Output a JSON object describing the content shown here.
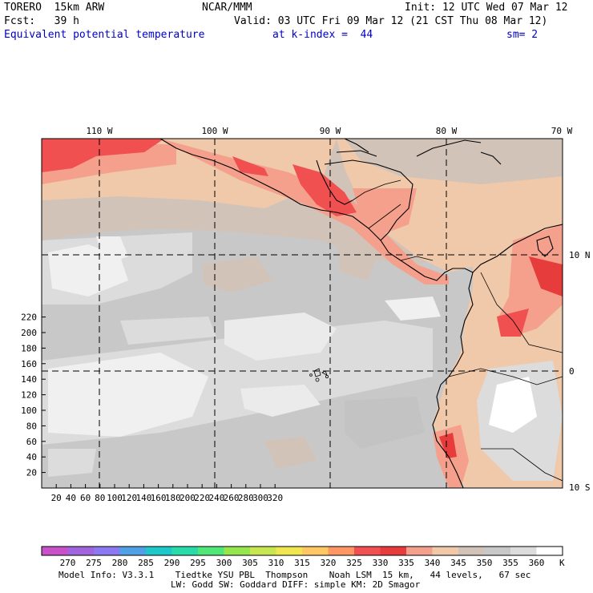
{
  "header": {
    "model": "TORERO  15km ARW",
    "center": "NCAR/MMM",
    "init": "Init: 12 UTC Wed 07 Mar 12",
    "fcst": "Fcst:   39 h",
    "valid": "Valid: 03 UTC Fri 09 Mar 12 (21 CST Thu 08 Mar 12)",
    "field": "Equivalent potential temperature",
    "level": "at k-index =  44",
    "smooth": "sm= 2"
  },
  "map": {
    "lon_labels": [
      "110 W",
      "100 W",
      "90 W",
      "80 W",
      "70 W"
    ],
    "lat_labels": [
      "10 N",
      "0",
      "10 S"
    ],
    "x_ticks": [
      "20",
      "40",
      "60",
      "80",
      "100",
      "120",
      "140",
      "160",
      "180",
      "200",
      "220",
      "240",
      "260",
      "280",
      "300",
      "320"
    ],
    "y_ticks": [
      "20",
      "40",
      "60",
      "80",
      "100",
      "120",
      "140",
      "160",
      "180",
      "200",
      "220"
    ]
  },
  "colorbar": {
    "unit": "K",
    "labels": [
      "270",
      "275",
      "280",
      "285",
      "290",
      "295",
      "300",
      "305",
      "310",
      "315",
      "320",
      "325",
      "330",
      "335",
      "340",
      "345",
      "350",
      "355",
      "360"
    ],
    "colors": [
      "#c850c8",
      "#a064dc",
      "#8c78f0",
      "#50a0e6",
      "#1ec8c8",
      "#28dcaa",
      "#50e678",
      "#96e650",
      "#c8e650",
      "#f0e650",
      "#ffc864",
      "#ff9664",
      "#f05050",
      "#e63c3c",
      "#f4a08c",
      "#f0c8aa",
      "#d2c3b9",
      "#c8c8c8",
      "#dcdcdc",
      "#ffffff"
    ]
  },
  "footer": {
    "line1": "Model Info: V3.3.1    Tiedtke YSU PBL  Thompson    Noah LSM  15 km,   44 levels,   67 sec",
    "line2": "LW: Godd SW: Goddard DIFF: simple KM: 2D Smagor"
  }
}
